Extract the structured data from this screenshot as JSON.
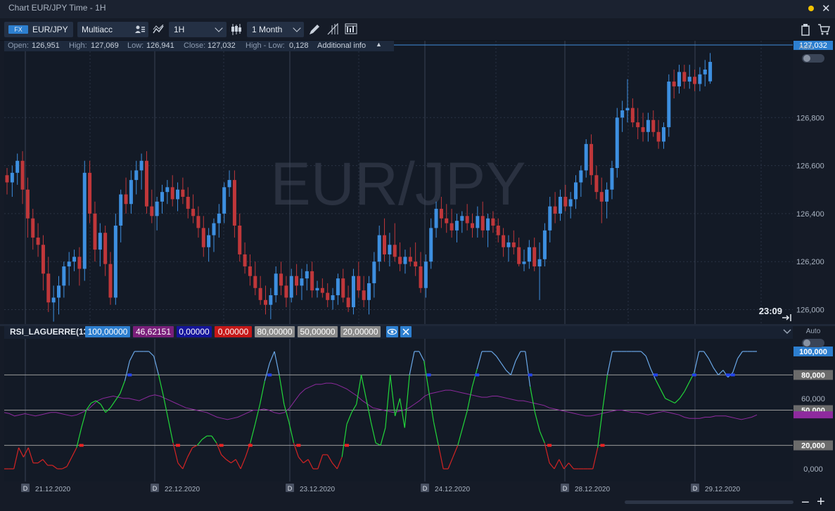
{
  "window": {
    "title": "Chart EUR/JPY Time - 1H"
  },
  "toolbar": {
    "asset_class": "FX",
    "symbol": "EUR/JPY",
    "account": "Multiacc",
    "timeframe": "1H",
    "range": "1 Month"
  },
  "info_bar": {
    "open_label": "Open:",
    "open": "126,951",
    "high_label": "High:",
    "high": "127,069",
    "low_label": "Low:",
    "low": "126,941",
    "close_label": "Close:",
    "close": "127,032",
    "hl_label": "High - Low:",
    "hl": "0,128",
    "additional": "Additional info"
  },
  "main_chart": {
    "watermark": "EUR/JPY",
    "price_ticks": [
      "126,800",
      "126,600",
      "126,400",
      "126,200",
      "126,000"
    ],
    "last_price": "127,032",
    "timer": "23:09",
    "auto_label": "Auto"
  },
  "rsi_panel": {
    "name": "RSI_LAGUERRE(13)",
    "params": [
      "100,00000",
      "46,62151",
      "0,00000",
      "0,00000",
      "80,00000",
      "50,00000",
      "20,00000"
    ],
    "param_colors": [
      "#2d7fd0",
      "#7a1f7a",
      "#14149a",
      "#c61818",
      "#8c8c8c",
      "#8c8c8c",
      "#8c8c8c"
    ],
    "ticks": [
      "100,000",
      "80,000",
      "60,000",
      "50,000",
      "20,000",
      "0,000"
    ],
    "auto_label": "Auto"
  },
  "time_axis": {
    "labels": [
      "21.12.2020",
      "22.12.2020",
      "23.12.2020",
      "24.12.2020",
      "28.12.2020",
      "29.12.2020"
    ],
    "marker": "D"
  },
  "chart_data": {
    "type": "candlestick",
    "title": "EUR/JPY",
    "timeframe": "1H",
    "y_range": [
      125.94,
      127.12
    ],
    "last_close": 127.032,
    "candles_ohlc": [
      [
        126.56,
        126.59,
        126.48,
        126.53
      ],
      [
        126.53,
        126.6,
        126.47,
        126.57
      ],
      [
        126.57,
        126.65,
        126.52,
        126.62
      ],
      [
        126.62,
        126.66,
        126.44,
        126.5
      ],
      [
        126.5,
        126.55,
        126.3,
        126.38
      ],
      [
        126.38,
        126.42,
        126.25,
        126.3
      ],
      [
        126.3,
        126.36,
        126.22,
        126.27
      ],
      [
        126.27,
        126.31,
        126.08,
        126.15
      ],
      [
        126.15,
        126.22,
        125.99,
        126.03
      ],
      [
        126.03,
        126.1,
        125.95,
        126.05
      ],
      [
        126.05,
        126.14,
        125.98,
        126.1
      ],
      [
        126.1,
        126.2,
        126.05,
        126.18
      ],
      [
        126.18,
        126.24,
        126.1,
        126.2
      ],
      [
        126.2,
        126.25,
        126.16,
        126.22
      ],
      [
        126.22,
        126.26,
        126.1,
        126.17
      ],
      [
        126.17,
        126.62,
        126.12,
        126.57
      ],
      [
        126.57,
        126.62,
        126.36,
        126.4
      ],
      [
        126.4,
        126.45,
        126.2,
        126.25
      ],
      [
        126.25,
        126.36,
        126.18,
        126.32
      ],
      [
        126.32,
        126.35,
        126.14,
        126.19
      ],
      [
        126.19,
        126.24,
        126.02,
        126.05
      ],
      [
        126.05,
        126.4,
        126.02,
        126.35
      ],
      [
        126.35,
        126.5,
        126.28,
        126.48
      ],
      [
        126.48,
        126.55,
        126.4,
        126.44
      ],
      [
        126.44,
        126.58,
        126.4,
        126.54
      ],
      [
        126.54,
        126.62,
        126.48,
        126.58
      ],
      [
        126.58,
        126.65,
        126.5,
        126.62
      ],
      [
        126.62,
        126.66,
        126.4,
        126.43
      ],
      [
        126.43,
        126.5,
        126.36,
        126.39
      ],
      [
        126.39,
        126.47,
        126.33,
        126.45
      ],
      [
        126.45,
        126.52,
        126.4,
        126.49
      ],
      [
        126.49,
        126.54,
        126.44,
        126.51
      ],
      [
        126.51,
        126.56,
        126.43,
        126.46
      ],
      [
        126.46,
        126.53,
        126.41,
        126.5
      ],
      [
        126.5,
        126.55,
        126.44,
        126.47
      ],
      [
        126.47,
        126.51,
        126.38,
        126.42
      ],
      [
        126.42,
        126.48,
        126.36,
        126.39
      ],
      [
        126.39,
        126.43,
        126.3,
        126.34
      ],
      [
        126.34,
        126.39,
        126.22,
        126.26
      ],
      [
        126.26,
        126.34,
        126.2,
        126.31
      ],
      [
        126.31,
        126.38,
        126.24,
        126.36
      ],
      [
        126.36,
        126.44,
        126.3,
        126.4
      ],
      [
        126.4,
        126.53,
        126.36,
        126.51
      ],
      [
        126.51,
        126.58,
        126.47,
        126.54
      ],
      [
        126.54,
        126.58,
        126.3,
        126.35
      ],
      [
        126.35,
        126.4,
        126.2,
        126.23
      ],
      [
        126.23,
        126.28,
        126.15,
        126.18
      ],
      [
        126.18,
        126.23,
        126.1,
        126.14
      ],
      [
        126.14,
        126.2,
        126.06,
        126.09
      ],
      [
        126.09,
        126.14,
        126.02,
        126.04
      ],
      [
        126.04,
        126.1,
        125.98,
        126.02
      ],
      [
        126.02,
        126.09,
        125.96,
        126.06
      ],
      [
        126.06,
        126.18,
        126.03,
        126.15
      ],
      [
        126.15,
        126.2,
        126.06,
        126.1
      ],
      [
        126.1,
        126.14,
        126.01,
        126.05
      ],
      [
        126.05,
        126.17,
        126.03,
        126.14
      ],
      [
        126.14,
        126.19,
        126.06,
        126.1
      ],
      [
        126.1,
        126.17,
        126.04,
        126.13
      ],
      [
        126.13,
        126.19,
        126.08,
        126.16
      ],
      [
        126.16,
        126.2,
        126.05,
        126.08
      ],
      [
        126.08,
        126.12,
        126.05,
        126.09
      ],
      [
        126.09,
        126.13,
        126.05,
        126.07
      ],
      [
        126.07,
        126.11,
        126.01,
        126.04
      ],
      [
        126.04,
        126.09,
        126.0,
        126.06
      ],
      [
        126.06,
        126.15,
        126.02,
        126.13
      ],
      [
        126.13,
        126.17,
        126.03,
        126.05
      ],
      [
        126.05,
        126.1,
        125.99,
        126.01
      ],
      [
        126.01,
        126.17,
        125.98,
        126.14
      ],
      [
        126.14,
        126.2,
        126.05,
        126.08
      ],
      [
        126.08,
        126.14,
        126.01,
        126.04
      ],
      [
        126.04,
        126.14,
        125.98,
        126.11
      ],
      [
        126.11,
        126.24,
        126.05,
        126.2
      ],
      [
        126.2,
        126.35,
        126.16,
        126.31
      ],
      [
        126.31,
        126.38,
        126.2,
        126.23
      ],
      [
        126.23,
        126.32,
        126.18,
        126.27
      ],
      [
        126.27,
        126.36,
        126.2,
        126.22
      ],
      [
        126.22,
        126.28,
        126.16,
        126.19
      ],
      [
        126.19,
        126.25,
        126.15,
        126.22
      ],
      [
        126.22,
        126.26,
        126.18,
        126.2
      ],
      [
        126.2,
        126.28,
        126.14,
        126.18
      ],
      [
        126.18,
        126.24,
        126.07,
        126.09
      ],
      [
        126.09,
        126.23,
        126.05,
        126.2
      ],
      [
        126.2,
        126.38,
        126.17,
        126.34
      ],
      [
        126.34,
        126.45,
        126.3,
        126.42
      ],
      [
        126.42,
        126.47,
        126.34,
        126.38
      ],
      [
        126.38,
        126.44,
        126.32,
        126.36
      ],
      [
        126.36,
        126.42,
        126.3,
        126.33
      ],
      [
        126.33,
        126.4,
        126.28,
        126.37
      ],
      [
        126.37,
        126.41,
        126.32,
        126.39
      ],
      [
        126.39,
        126.44,
        126.33,
        126.36
      ],
      [
        126.36,
        126.4,
        126.3,
        126.34
      ],
      [
        126.34,
        126.43,
        126.3,
        126.39
      ],
      [
        126.39,
        126.45,
        126.3,
        126.33
      ],
      [
        126.33,
        126.4,
        126.26,
        126.38
      ],
      [
        126.38,
        126.41,
        126.32,
        126.35
      ],
      [
        126.35,
        126.38,
        126.28,
        126.31
      ],
      [
        126.31,
        126.34,
        126.22,
        126.26
      ],
      [
        126.26,
        126.31,
        126.2,
        126.28
      ],
      [
        126.28,
        126.33,
        126.23,
        126.26
      ],
      [
        126.26,
        126.3,
        126.18,
        126.19
      ],
      [
        126.19,
        126.25,
        126.16,
        126.2
      ],
      [
        126.2,
        126.29,
        126.17,
        126.26
      ],
      [
        126.26,
        126.3,
        126.16,
        126.18
      ],
      [
        126.18,
        126.28,
        126.04,
        126.21
      ],
      [
        126.21,
        126.36,
        126.18,
        126.33
      ],
      [
        126.33,
        126.47,
        126.28,
        126.43
      ],
      [
        126.43,
        126.49,
        126.36,
        126.4
      ],
      [
        126.4,
        126.5,
        126.37,
        126.47
      ],
      [
        126.47,
        126.52,
        126.41,
        126.43
      ],
      [
        126.43,
        126.49,
        126.38,
        126.46
      ],
      [
        126.46,
        126.56,
        126.42,
        126.53
      ],
      [
        126.53,
        126.6,
        126.47,
        126.58
      ],
      [
        126.58,
        126.71,
        126.55,
        126.69
      ],
      [
        126.69,
        126.73,
        126.52,
        126.56
      ],
      [
        126.56,
        126.6,
        126.46,
        126.49
      ],
      [
        126.49,
        126.55,
        126.36,
        126.45
      ],
      [
        126.45,
        126.53,
        126.38,
        126.5
      ],
      [
        126.5,
        126.62,
        126.46,
        126.59
      ],
      [
        126.59,
        126.84,
        126.55,
        126.8
      ],
      [
        126.8,
        126.87,
        126.74,
        126.83
      ],
      [
        126.83,
        126.96,
        126.78,
        126.84
      ],
      [
        126.84,
        126.88,
        126.76,
        126.78
      ],
      [
        126.78,
        126.84,
        126.71,
        126.76
      ],
      [
        126.76,
        126.82,
        126.7,
        126.74
      ],
      [
        126.74,
        126.82,
        126.7,
        126.79
      ],
      [
        126.79,
        126.83,
        126.72,
        126.74
      ],
      [
        126.74,
        126.79,
        126.67,
        126.7
      ],
      [
        126.7,
        126.78,
        126.67,
        126.76
      ],
      [
        126.76,
        126.98,
        126.72,
        126.95
      ],
      [
        126.95,
        127.0,
        126.88,
        126.93
      ],
      [
        126.93,
        127.02,
        126.9,
        126.99
      ],
      [
        126.99,
        127.02,
        126.92,
        126.95
      ],
      [
        126.95,
        127.02,
        126.92,
        126.97
      ],
      [
        126.97,
        127.0,
        126.91,
        126.94
      ],
      [
        126.94,
        127.01,
        126.91,
        126.98
      ],
      [
        126.98,
        127.04,
        126.93,
        127.0
      ],
      [
        126.951,
        127.069,
        126.941,
        127.032
      ]
    ],
    "indicator": {
      "name": "RSI_LAGUERRE(13)",
      "levels": [
        80,
        50,
        20
      ],
      "laguerre_rsi": [
        0,
        0,
        0,
        18,
        10,
        18,
        5,
        5,
        8,
        3,
        3,
        0,
        0,
        2,
        10,
        18,
        35,
        50,
        56,
        58,
        55,
        48,
        52,
        58,
        64,
        75,
        92,
        100,
        100,
        100,
        100,
        96,
        80,
        62,
        42,
        22,
        5,
        0,
        10,
        18,
        20,
        25,
        28,
        28,
        22,
        12,
        8,
        5,
        8,
        0,
        10,
        22,
        38,
        55,
        75,
        90,
        100,
        80,
        55,
        40,
        22,
        10,
        5,
        8,
        0,
        0,
        12,
        12,
        5,
        0,
        10,
        38,
        48,
        55,
        80,
        60,
        40,
        22,
        20,
        35,
        80,
        45,
        60,
        35,
        80,
        100,
        100,
        92,
        66,
        40,
        20,
        0,
        0,
        10,
        20,
        35,
        50,
        70,
        85,
        100,
        100,
        100,
        96,
        90,
        84,
        80,
        92,
        100,
        100,
        70,
        48,
        32,
        22,
        5,
        0,
        8,
        0,
        5,
        0,
        0,
        0,
        0,
        0,
        18,
        50,
        80,
        100,
        100,
        100,
        100,
        100,
        100,
        100,
        96,
        85,
        76,
        68,
        60,
        58,
        56,
        60,
        66,
        74,
        82,
        100,
        100,
        94,
        86,
        80,
        84,
        78,
        82,
        94,
        100,
        100,
        100,
        100
      ],
      "signal": [
        48,
        47,
        45,
        46,
        47,
        46,
        45,
        46,
        47,
        48,
        48,
        47,
        46,
        45,
        46,
        48,
        50,
        54,
        58,
        60,
        61,
        62,
        61,
        60,
        60,
        59,
        58,
        60,
        62,
        63,
        62,
        60,
        58,
        56,
        54,
        52,
        51,
        50,
        49,
        48,
        46,
        44,
        43,
        42,
        43,
        44,
        46,
        48,
        50,
        50,
        51,
        50,
        48,
        47,
        48,
        52,
        58,
        64,
        68,
        70,
        72,
        72,
        73,
        73,
        72,
        70,
        68,
        65,
        62,
        58,
        55,
        52,
        51,
        50,
        49,
        48,
        49,
        50,
        52,
        55,
        58,
        62,
        64,
        65,
        66,
        67,
        67,
        66,
        65,
        64,
        63,
        62,
        61,
        61,
        62,
        62,
        61,
        60,
        59,
        58,
        58,
        57,
        56,
        55,
        54,
        52,
        51,
        50,
        49,
        48,
        47,
        46,
        45,
        45,
        46,
        47,
        48,
        49,
        50,
        50,
        49,
        48,
        48,
        47,
        46,
        47,
        48,
        49,
        48,
        47,
        46,
        44,
        43,
        43,
        43,
        44,
        44,
        45,
        45,
        45,
        44,
        43,
        42,
        43,
        44,
        46
      ]
    }
  }
}
